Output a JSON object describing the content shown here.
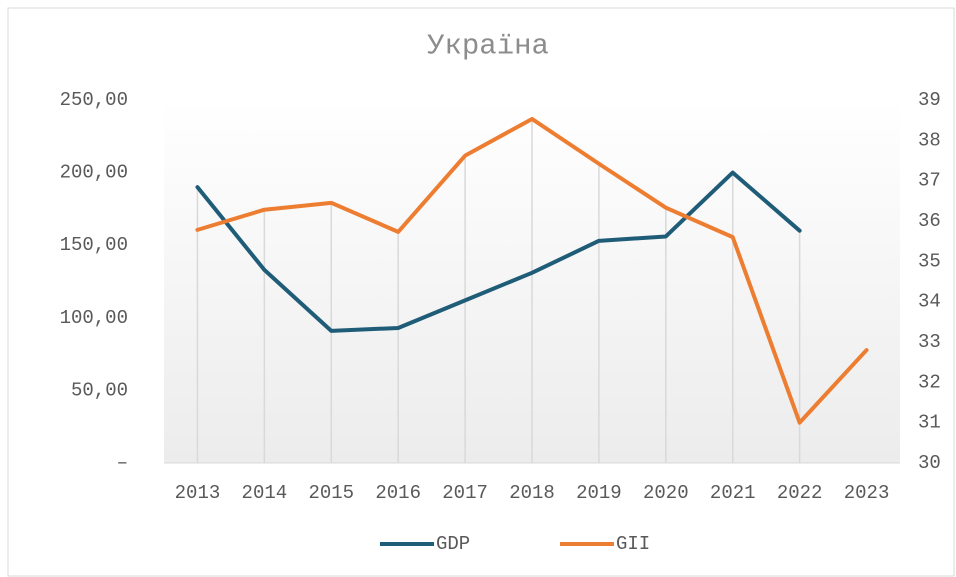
{
  "chart_data": {
    "type": "line",
    "title": "Україна",
    "categories": [
      "2013",
      "2014",
      "2015",
      "2016",
      "2017",
      "2018",
      "2019",
      "2020",
      "2021",
      "2022",
      "2023"
    ],
    "series": [
      {
        "name": "GDP",
        "color": "#1f5c78",
        "values": [
          190,
          133,
          91,
          93,
          112,
          131,
          153,
          156,
          200,
          160,
          null
        ]
      },
      {
        "name": "GII",
        "color": "#ed7d31",
        "axis": "y2",
        "values": [
          35.78,
          36.28,
          36.45,
          35.73,
          37.62,
          38.53,
          37.42,
          36.33,
          35.6,
          31.0,
          32.8
        ]
      }
    ],
    "ylim": [
      0,
      250
    ],
    "yticks": [
      {
        "value": 0,
        "label": "–"
      },
      {
        "value": 50,
        "label": "50,00"
      },
      {
        "value": 100,
        "label": "100,00"
      },
      {
        "value": 150,
        "label": "150,00"
      },
      {
        "value": 200,
        "label": "200,00"
      },
      {
        "value": 250,
        "label": "250,00"
      }
    ],
    "y2lim": [
      30,
      39
    ],
    "y2ticks": [
      30,
      31,
      32,
      33,
      34,
      35,
      36,
      37,
      38,
      39
    ],
    "legend": "bottom"
  }
}
